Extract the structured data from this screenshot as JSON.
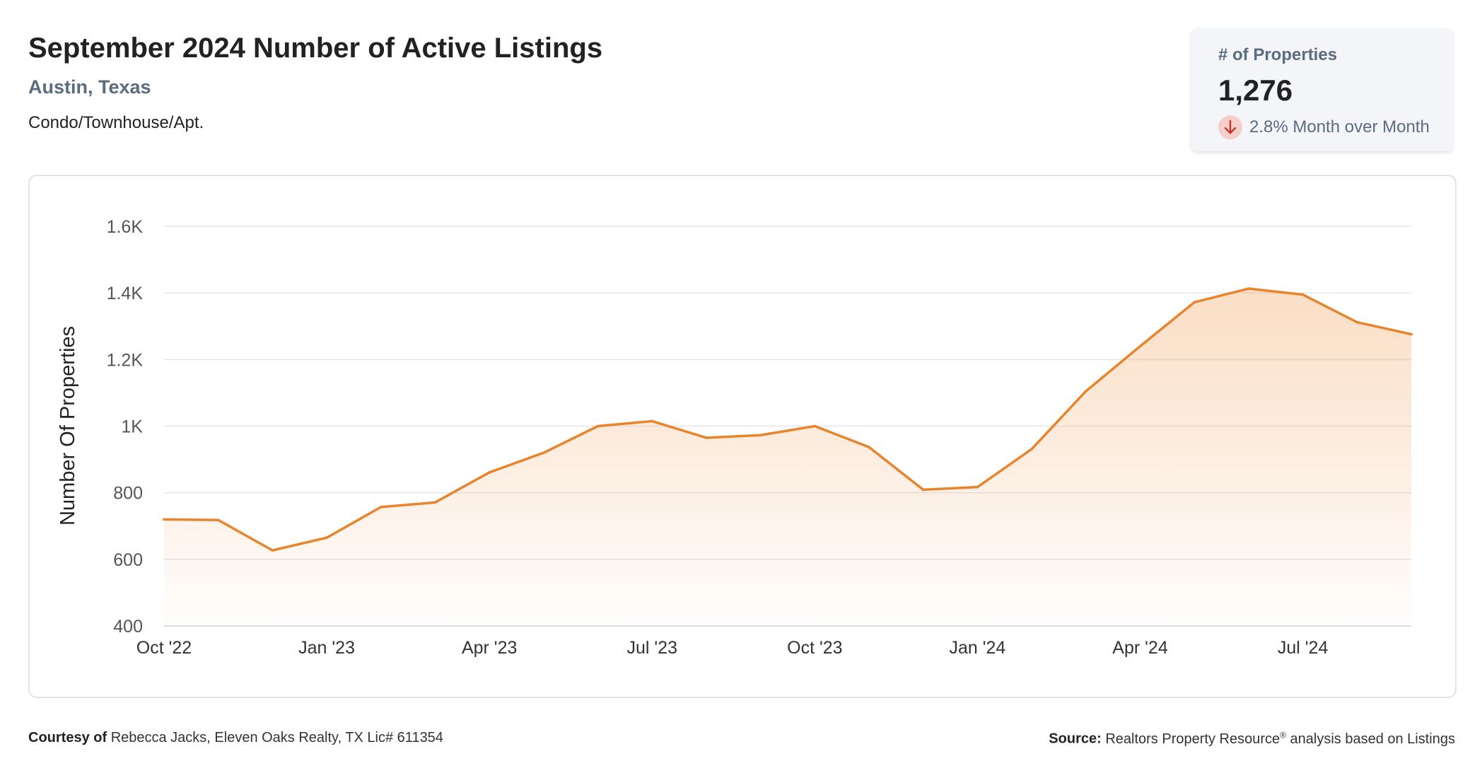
{
  "header": {
    "title": "September 2024 Number of Active Listings",
    "location": "Austin, Texas",
    "property_type": "Condo/Townhouse/Apt."
  },
  "stat_card": {
    "label": "# of Properties",
    "value": "1,276",
    "change_text": "2.8% Month over Month",
    "direction_icon": "arrow-down-icon",
    "change_color": "#d9534f"
  },
  "chart_data": {
    "type": "area",
    "title": "",
    "ylabel": "Number Of Properties",
    "xlabel": "",
    "ylim": [
      400,
      1600
    ],
    "y_ticks": [
      400,
      600,
      800,
      1000,
      1200,
      1400,
      1600
    ],
    "y_tick_labels": [
      "400",
      "600",
      "800",
      "1K",
      "1.2K",
      "1.4K",
      "1.6K"
    ],
    "x_tick_labels": [
      "Oct '22",
      "Jan '23",
      "Apr '23",
      "Jul '23",
      "Oct '23",
      "Jan '24",
      "Apr '24",
      "Jul '24"
    ],
    "x_tick_indices": [
      0,
      3,
      6,
      9,
      12,
      15,
      18,
      21
    ],
    "series": [
      {
        "color": "#e8842c",
        "x": [
          "2022-10",
          "2022-11",
          "2022-12",
          "2023-01",
          "2023-02",
          "2023-03",
          "2023-04",
          "2023-05",
          "2023-06",
          "2023-07",
          "2023-08",
          "2023-09",
          "2023-10",
          "2023-11",
          "2023-12",
          "2024-01",
          "2024-02",
          "2024-03",
          "2024-04",
          "2024-05",
          "2024-06",
          "2024-07",
          "2024-08",
          "2024-09"
        ],
        "values": [
          720,
          718,
          627,
          665,
          757,
          771,
          861,
          920,
          1000,
          1015,
          965,
          973,
          1000,
          937,
          809,
          817,
          931,
          1105,
          1240,
          1372,
          1413,
          1395,
          1312,
          1276
        ]
      }
    ],
    "grid": true,
    "legend": "none"
  },
  "footer": {
    "courtesy_label": "Courtesy of",
    "courtesy_text": "Rebecca Jacks, Eleven Oaks Realty, TX Lic# 611354",
    "source_label": "Source:",
    "source_text_a": "Realtors Property Resource",
    "source_mark": "®",
    "source_text_b": " analysis based on Listings"
  }
}
